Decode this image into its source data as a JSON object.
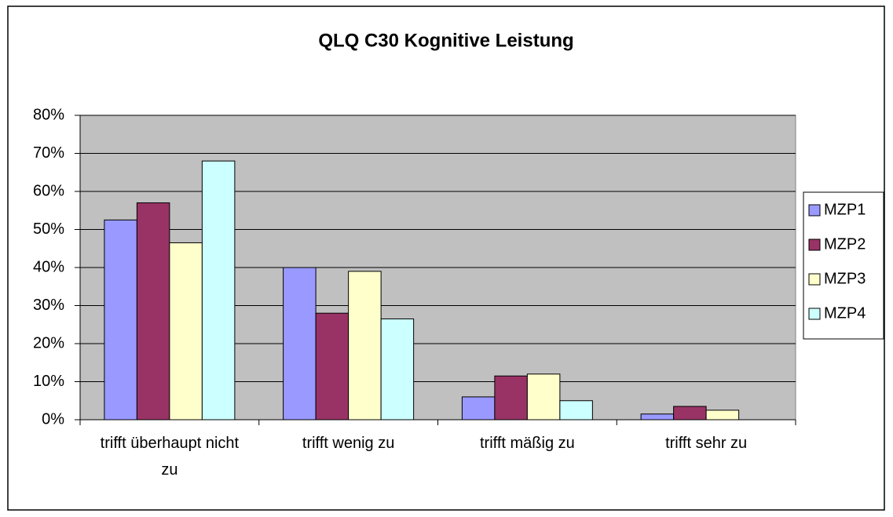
{
  "chart_data": {
    "type": "bar",
    "title": "QLQ C30 Kognitive Leistung",
    "categories": [
      "trifft überhaupt nicht zu",
      "trifft wenig zu",
      "trifft mäßig zu",
      "trifft sehr zu"
    ],
    "series": [
      {
        "name": "MZP1",
        "color": "#9999ff",
        "values": [
          52.5,
          40,
          6,
          1.5
        ]
      },
      {
        "name": "MZP2",
        "color": "#993366",
        "values": [
          57,
          28,
          11.5,
          3.5
        ]
      },
      {
        "name": "MZP3",
        "color": "#ffffcc",
        "values": [
          46.5,
          39,
          12,
          2.5
        ]
      },
      {
        "name": "MZP4",
        "color": "#ccffff",
        "values": [
          68,
          26.5,
          5,
          0
        ]
      }
    ],
    "ylim": [
      0,
      80
    ],
    "yticks": [
      {
        "value": 0,
        "label": "0%"
      },
      {
        "value": 10,
        "label": "10%"
      },
      {
        "value": 20,
        "label": "20%"
      },
      {
        "value": 30,
        "label": "30%"
      },
      {
        "value": 40,
        "label": "40%"
      },
      {
        "value": 50,
        "label": "50%"
      },
      {
        "value": 60,
        "label": "60%"
      },
      {
        "value": 70,
        "label": "70%"
      },
      {
        "value": 80,
        "label": "80%"
      }
    ],
    "grid": true,
    "legend": "right"
  }
}
